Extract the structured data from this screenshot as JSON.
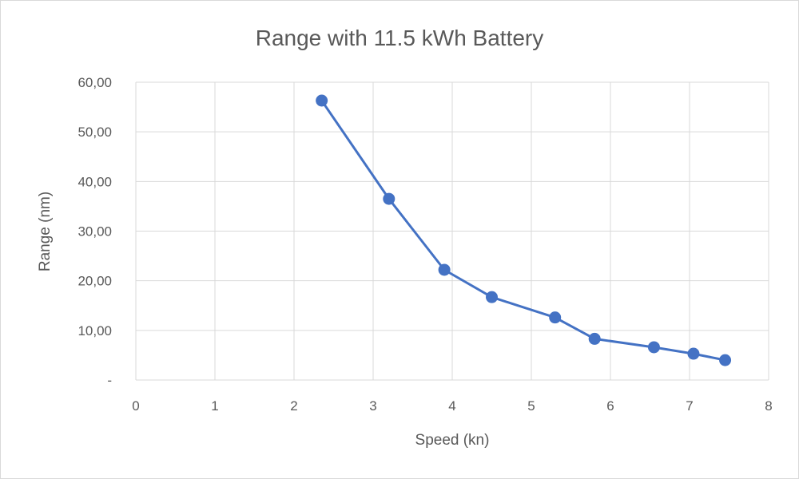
{
  "chart_data": {
    "type": "scatter",
    "title": "Range with 11.5 kWh Battery",
    "xlabel": "Speed (kn)",
    "ylabel": "Range (nm)",
    "xlim": [
      0,
      8
    ],
    "ylim": [
      0,
      60
    ],
    "x_ticks": [
      "0",
      "1",
      "2",
      "3",
      "4",
      "5",
      "6",
      "7",
      "8"
    ],
    "y_ticks": [
      "-",
      "10,00",
      "20,00",
      "30,00",
      "40,00",
      "50,00",
      "60,00"
    ],
    "grid": true,
    "legend": "none",
    "line_color": "#4472c4",
    "grid_color": "#d9d9d9",
    "series": [
      {
        "x": [
          2.35,
          3.2,
          3.9,
          4.5,
          5.3,
          5.8,
          6.55,
          7.05,
          7.45
        ],
        "y": [
          56.3,
          36.5,
          22.2,
          16.7,
          12.6,
          8.3,
          6.6,
          5.3,
          4.0
        ]
      }
    ]
  }
}
